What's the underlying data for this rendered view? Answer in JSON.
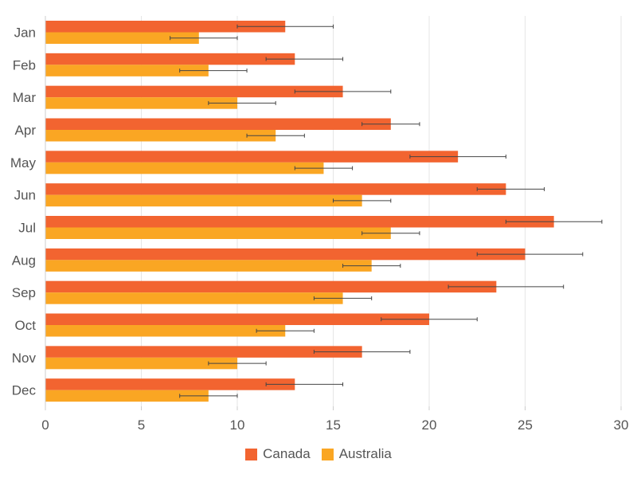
{
  "chart_data": {
    "type": "bar",
    "orientation": "horizontal",
    "categories": [
      "Jan",
      "Feb",
      "Mar",
      "Apr",
      "May",
      "Jun",
      "Jul",
      "Aug",
      "Sep",
      "Oct",
      "Nov",
      "Dec"
    ],
    "series": [
      {
        "name": "Canada",
        "color": "#f26430",
        "values": [
          12.5,
          13,
          15.5,
          18,
          21.5,
          24,
          26.5,
          25,
          23.5,
          20,
          16.5,
          13
        ],
        "error_low": [
          10,
          11.5,
          13,
          16.5,
          19,
          22.5,
          24,
          22.5,
          21,
          17.5,
          14,
          11.5
        ],
        "error_high": [
          15,
          15.5,
          18,
          19.5,
          24,
          26,
          29,
          28,
          27,
          22.5,
          19,
          15.5
        ]
      },
      {
        "name": "Australia",
        "color": "#faa623",
        "values": [
          8,
          8.5,
          10,
          12,
          14.5,
          16.5,
          18,
          17,
          15.5,
          12.5,
          10,
          8.5
        ],
        "error_low": [
          6.5,
          7,
          8.5,
          10.5,
          13,
          15,
          16.5,
          15.5,
          14,
          11,
          8.5,
          7
        ],
        "error_high": [
          10,
          10.5,
          12,
          13.5,
          16,
          18,
          19.5,
          18.5,
          17,
          14,
          11.5,
          10
        ]
      }
    ],
    "xlim": [
      0,
      30
    ],
    "x_ticks": [
      "0",
      "5",
      "10",
      "15",
      "20",
      "25",
      "30"
    ],
    "grid": true,
    "legend_position": "bottom-center",
    "title": "",
    "xlabel": "",
    "ylabel": ""
  }
}
